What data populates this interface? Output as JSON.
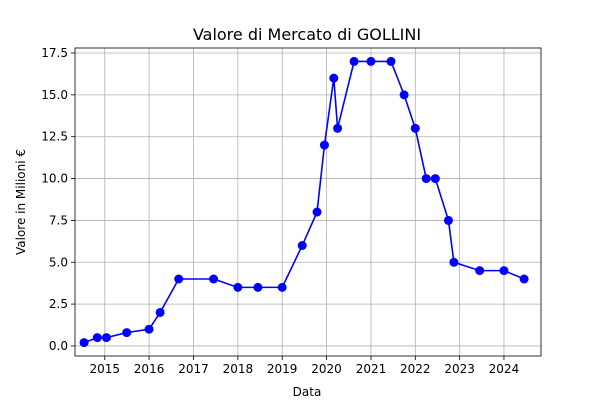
{
  "chart_data": {
    "type": "line",
    "title": "Valore di Mercato di GOLLINI",
    "xlabel": "Data",
    "ylabel": "Valore in Milioni €",
    "x_type": "date",
    "xlim": [
      "2014-05-01",
      "2024-11-01"
    ],
    "ylim": [
      -0.6,
      17.8
    ],
    "x_ticks": [
      "2015",
      "2016",
      "2017",
      "2018",
      "2019",
      "2020",
      "2021",
      "2022",
      "2023",
      "2024"
    ],
    "y_ticks": [
      "0.0",
      "2.5",
      "5.0",
      "7.5",
      "10.0",
      "12.5",
      "15.0",
      "17.5"
    ],
    "grid": true,
    "legend": "none",
    "series": [
      {
        "color": "#0000ff",
        "marker": "circle",
        "points": [
          {
            "x": "2014-07-15",
            "y": 0.2
          },
          {
            "x": "2014-11-01",
            "y": 0.5
          },
          {
            "x": "2015-01-15",
            "y": 0.5
          },
          {
            "x": "2015-07-01",
            "y": 0.8
          },
          {
            "x": "2016-01-01",
            "y": 1.0
          },
          {
            "x": "2016-04-01",
            "y": 2.0
          },
          {
            "x": "2016-09-01",
            "y": 4.0
          },
          {
            "x": "2017-06-15",
            "y": 4.0
          },
          {
            "x": "2018-01-01",
            "y": 3.5
          },
          {
            "x": "2018-06-15",
            "y": 3.5
          },
          {
            "x": "2019-01-01",
            "y": 3.5
          },
          {
            "x": "2019-06-15",
            "y": 6.0
          },
          {
            "x": "2019-10-15",
            "y": 8.0
          },
          {
            "x": "2019-12-15",
            "y": 12.0
          },
          {
            "x": "2020-03-01",
            "y": 16.0
          },
          {
            "x": "2020-04-01",
            "y": 13.0
          },
          {
            "x": "2020-08-15",
            "y": 17.0
          },
          {
            "x": "2021-01-01",
            "y": 17.0
          },
          {
            "x": "2021-06-15",
            "y": 17.0
          },
          {
            "x": "2021-10-01",
            "y": 15.0
          },
          {
            "x": "2022-01-01",
            "y": 13.0
          },
          {
            "x": "2022-04-01",
            "y": 10.0
          },
          {
            "x": "2022-06-15",
            "y": 10.0
          },
          {
            "x": "2022-10-01",
            "y": 7.5
          },
          {
            "x": "2022-11-15",
            "y": 5.0
          },
          {
            "x": "2023-06-15",
            "y": 4.5
          },
          {
            "x": "2024-01-01",
            "y": 4.5
          },
          {
            "x": "2024-06-15",
            "y": 4.0
          }
        ]
      }
    ]
  }
}
